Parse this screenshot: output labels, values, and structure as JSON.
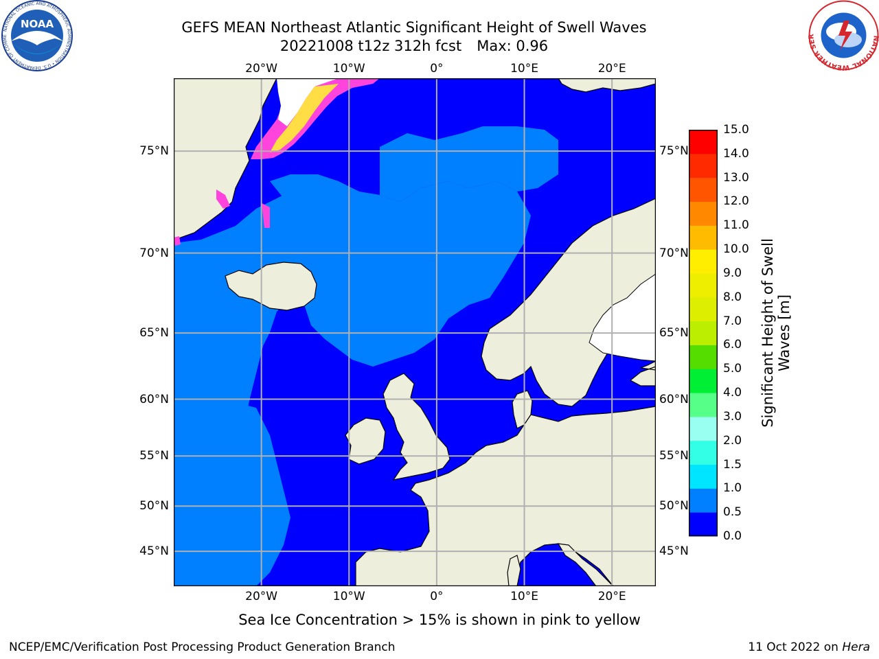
{
  "header": {
    "title_line1": "GEFS MEAN Northeast Atlantic Significant Height of Swell Waves",
    "title_run": "20221008 t12z 312h fcst",
    "title_max": "Max: 0.96"
  },
  "logos": {
    "left": {
      "name": "NOAA",
      "ring_text": "NATIONAL OCEANIC AND ATMOSPHERIC ADMINISTRATION • U.S. DEPARTMENT OF COMMERCE"
    },
    "right": {
      "name": "National Weather Service",
      "ring_text": "NATIONAL WEATHER SERVICE"
    }
  },
  "map": {
    "lon_range": [
      -30,
      25
    ],
    "lat_range": [
      40.8,
      77.8
    ],
    "lon_labels": [
      "20°W",
      "10°W",
      "0°",
      "10°E",
      "20°E"
    ],
    "lon_values": [
      -20,
      -10,
      0,
      10,
      20
    ],
    "lat_labels": [
      "75°N",
      "70°N",
      "65°N",
      "60°N",
      "55°N",
      "50°N",
      "45°N"
    ],
    "lat_values": [
      75,
      70,
      65,
      60,
      55,
      50,
      45
    ],
    "colors": {
      "land": "#eeeedd",
      "ocean_low": "#0000ff",
      "ocean_mid": "#0080ff",
      "ice_pink": "#ff44dd",
      "ice_yellow": "#ffdd44",
      "grid": "#b0b0b0"
    }
  },
  "colorbar": {
    "label_line1": "Significant Height of Swell",
    "label_line2": "Waves [m]",
    "ticks": [
      "0.0",
      "0.5",
      "1.0",
      "1.5",
      "2.0",
      "3.0",
      "4.0",
      "5.0",
      "6.0",
      "7.0",
      "8.0",
      "9.0",
      "10.0",
      "11.0",
      "12.0",
      "13.0",
      "14.0",
      "15.0"
    ],
    "colors": [
      "#0000ff",
      "#0080ff",
      "#00e5ff",
      "#33ffe6",
      "#99fff0",
      "#55ff88",
      "#00ee33",
      "#55dd00",
      "#bbee00",
      "#ddee00",
      "#eeee00",
      "#ffee00",
      "#ffbb00",
      "#ff8800",
      "#ff5500",
      "#ff2a00",
      "#ff0000"
    ]
  },
  "note": "Sea Ice Concentration > 15% is shown in pink to yellow",
  "footer": {
    "left": "NCEP/EMC/Verification Post Processing Product Generation Branch",
    "right_prefix": "11 Oct 2022 on ",
    "right_machine": "Hera"
  }
}
